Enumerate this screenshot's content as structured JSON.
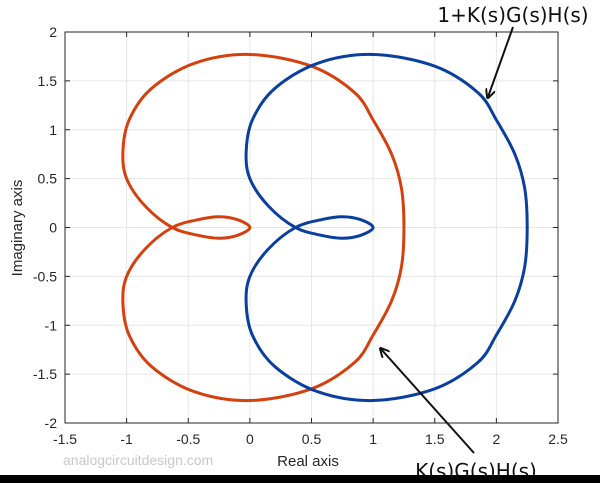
{
  "chart_data": {
    "type": "line",
    "title": "",
    "xlabel": "Real axis",
    "ylabel": "Imaginary axis",
    "xlim": [
      -1.5,
      2.5
    ],
    "ylim": [
      -2,
      2
    ],
    "xticks": [
      -1.5,
      -1,
      -0.5,
      0,
      0.5,
      1,
      1.5,
      2,
      2.5
    ],
    "xtick_labels": [
      "-1.5",
      "-1",
      "-0.5",
      "0",
      "0.5",
      "1",
      "1.5",
      "2",
      "2.5"
    ],
    "yticks": [
      2,
      1.5,
      1,
      0.5,
      0,
      -0.5,
      -1,
      -1.5,
      -2
    ],
    "ytick_labels": [
      "2",
      "1.5",
      "1",
      "0.5",
      "0",
      "-0.5",
      "-1",
      "-1.5",
      "-2"
    ],
    "grid": true,
    "series": [
      {
        "name": "K(s)G(s)H(s)",
        "color": "#D4410F",
        "points": [
          [
            0,
            0
          ],
          [
            -0.1,
            0.08
          ],
          [
            -0.25,
            0.11
          ],
          [
            -0.42,
            0.08
          ],
          [
            -0.63,
            0
          ],
          [
            -0.85,
            -0.22
          ],
          [
            -1.0,
            -0.5
          ],
          [
            -1.03,
            -0.78
          ],
          [
            -0.98,
            -1.1
          ],
          [
            -0.8,
            -1.42
          ],
          [
            -0.45,
            -1.68
          ],
          [
            0,
            -1.77
          ],
          [
            0.5,
            -1.65
          ],
          [
            0.85,
            -1.38
          ],
          [
            1.0,
            -1.1
          ],
          [
            1.15,
            -0.75
          ],
          [
            1.23,
            -0.4
          ],
          [
            1.25,
            0
          ],
          [
            1.23,
            0.4
          ],
          [
            1.15,
            0.75
          ],
          [
            1.0,
            1.1
          ],
          [
            0.85,
            1.38
          ],
          [
            0.5,
            1.65
          ],
          [
            0,
            1.77
          ],
          [
            -0.45,
            1.68
          ],
          [
            -0.8,
            1.42
          ],
          [
            -0.98,
            1.1
          ],
          [
            -1.03,
            0.78
          ],
          [
            -1.0,
            0.5
          ],
          [
            -0.85,
            0.22
          ],
          [
            -0.63,
            0
          ],
          [
            -0.42,
            -0.08
          ],
          [
            -0.25,
            -0.11
          ],
          [
            -0.1,
            -0.08
          ],
          [
            0,
            0
          ]
        ]
      },
      {
        "name": "1+K(s)G(s)H(s)",
        "color": "#0A3FA0",
        "offset_x": 1,
        "points_ref": "K(s)G(s)H(s) shifted by +1 on real axis"
      }
    ],
    "annotations": [
      {
        "text": "1+K(s)G(s)H(s)",
        "arrow_to": [
          1.93,
          1.33
        ]
      },
      {
        "text": "K(s)G(s)H(s)",
        "arrow_to": [
          1.05,
          -1.24
        ]
      }
    ]
  },
  "labels": {
    "xlabel": "Real axis",
    "ylabel": "Imaginary axis",
    "watermark": "analogcircuitdesign.com",
    "annot_top": "1+K(s)G(s)H(s)",
    "annot_bottom": "K(s)G(s)H(s)"
  }
}
